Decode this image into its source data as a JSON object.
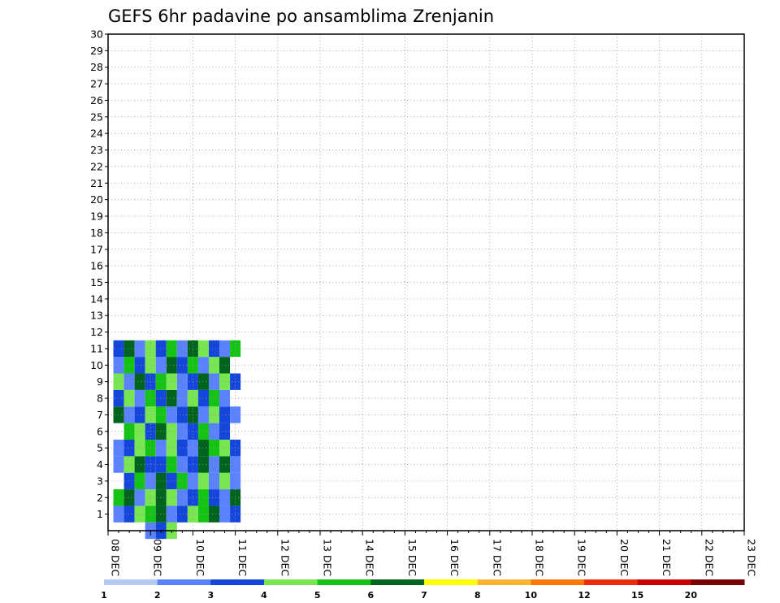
{
  "chart_data": {
    "type": "heatmap",
    "title": "GEFS 6hr padavine po ansamblima Zrenjanin",
    "xlabel": "",
    "ylabel": "",
    "x_tick_labels": [
      "08 DEC",
      "09 DEC",
      "10 DEC",
      "11 DEC",
      "12 DEC",
      "13 DEC",
      "14 DEC",
      "15 DEC",
      "16 DEC",
      "17 DEC",
      "18 DEC",
      "19 DEC",
      "20 DEC",
      "21 DEC",
      "22 DEC",
      "23 DEC"
    ],
    "y_tick_labels": [
      "1",
      "2",
      "3",
      "4",
      "5",
      "6",
      "7",
      "8",
      "9",
      "10",
      "11",
      "12",
      "13",
      "14",
      "15",
      "16",
      "17",
      "18",
      "19",
      "20",
      "21",
      "22",
      "23",
      "24",
      "25",
      "26",
      "27",
      "28",
      "29",
      "30"
    ],
    "x_range_days": [
      0,
      15
    ],
    "y_range": [
      0,
      30
    ],
    "grid": true,
    "legend_placement": "bottom",
    "legend": {
      "labels": [
        "1",
        "2",
        "3",
        "4",
        "5",
        "6",
        "7",
        "8",
        "10",
        "12",
        "15",
        "20"
      ],
      "colors": [
        "#b4c8f5",
        "#5a82ff",
        "#1446dc",
        "#78e650",
        "#14c314",
        "#00641e",
        "#ffff00",
        "#ffb432",
        "#ff7800",
        "#eb2d0a",
        "#c80000",
        "#780000"
      ]
    },
    "cells": [
      [
        1,
        0,
        1
      ],
      [
        1.25,
        0,
        2
      ],
      [
        1.5,
        0,
        3
      ],
      [
        0.25,
        1,
        1
      ],
      [
        0.5,
        1,
        2
      ],
      [
        0.75,
        1,
        3
      ],
      [
        1,
        1,
        4
      ],
      [
        1.25,
        1,
        5
      ],
      [
        1.5,
        1,
        1
      ],
      [
        1.75,
        1,
        2
      ],
      [
        2,
        1,
        3
      ],
      [
        2.25,
        1,
        4
      ],
      [
        2.5,
        1,
        5
      ],
      [
        2.75,
        1,
        1
      ],
      [
        3,
        1,
        2
      ],
      [
        0.25,
        2,
        4
      ],
      [
        0.5,
        2,
        5
      ],
      [
        0.75,
        2,
        1
      ],
      [
        1,
        2,
        3
      ],
      [
        1.25,
        2,
        5
      ],
      [
        1.5,
        2,
        3
      ],
      [
        1.75,
        2,
        1
      ],
      [
        2,
        2,
        2
      ],
      [
        2.25,
        2,
        4
      ],
      [
        2.5,
        2,
        2
      ],
      [
        2.75,
        2,
        1
      ],
      [
        3,
        2,
        5
      ],
      [
        0.5,
        3,
        2
      ],
      [
        0.75,
        3,
        4
      ],
      [
        1,
        3,
        1
      ],
      [
        1.25,
        3,
        5
      ],
      [
        1.5,
        3,
        2
      ],
      [
        1.75,
        3,
        4
      ],
      [
        2,
        3,
        1
      ],
      [
        2.25,
        3,
        3
      ],
      [
        2.5,
        3,
        1
      ],
      [
        2.75,
        3,
        3
      ],
      [
        3,
        3,
        1
      ],
      [
        0.25,
        4,
        1
      ],
      [
        0.5,
        4,
        3
      ],
      [
        0.75,
        4,
        5
      ],
      [
        1,
        4,
        2
      ],
      [
        1.25,
        4,
        2
      ],
      [
        1.5,
        4,
        4
      ],
      [
        1.75,
        4,
        1
      ],
      [
        2,
        4,
        2
      ],
      [
        2.25,
        4,
        5
      ],
      [
        2.5,
        4,
        1
      ],
      [
        2.75,
        4,
        5
      ],
      [
        3,
        4,
        1
      ],
      [
        0.25,
        5,
        1
      ],
      [
        0.5,
        5,
        2
      ],
      [
        0.75,
        5,
        3
      ],
      [
        1,
        5,
        4
      ],
      [
        1.25,
        5,
        1
      ],
      [
        1.5,
        5,
        3
      ],
      [
        1.75,
        5,
        2
      ],
      [
        2,
        5,
        1
      ],
      [
        2.25,
        5,
        5
      ],
      [
        2.5,
        5,
        4
      ],
      [
        2.75,
        5,
        3
      ],
      [
        3,
        5,
        2
      ],
      [
        0.5,
        6,
        4
      ],
      [
        0.75,
        6,
        3
      ],
      [
        1,
        6,
        2
      ],
      [
        1.25,
        6,
        5
      ],
      [
        1.5,
        6,
        3
      ],
      [
        1.75,
        6,
        1
      ],
      [
        2,
        6,
        2
      ],
      [
        2.25,
        6,
        4
      ],
      [
        2.5,
        6,
        1
      ],
      [
        2.75,
        6,
        2
      ],
      [
        0.25,
        7,
        5
      ],
      [
        0.5,
        7,
        1
      ],
      [
        0.75,
        7,
        2
      ],
      [
        1,
        7,
        3
      ],
      [
        1.25,
        7,
        4
      ],
      [
        1.5,
        7,
        1
      ],
      [
        1.75,
        7,
        2
      ],
      [
        2,
        7,
        5
      ],
      [
        2.25,
        7,
        1
      ],
      [
        2.5,
        7,
        3
      ],
      [
        2.75,
        7,
        2
      ],
      [
        3,
        7,
        1
      ],
      [
        0.25,
        8,
        2
      ],
      [
        0.5,
        8,
        3
      ],
      [
        0.75,
        8,
        1
      ],
      [
        1,
        8,
        4
      ],
      [
        1.25,
        8,
        2
      ],
      [
        1.5,
        8,
        5
      ],
      [
        1.75,
        8,
        1
      ],
      [
        2,
        8,
        3
      ],
      [
        2.25,
        8,
        2
      ],
      [
        2.5,
        8,
        4
      ],
      [
        2.75,
        8,
        1
      ],
      [
        0.25,
        9,
        3
      ],
      [
        0.5,
        9,
        1
      ],
      [
        0.75,
        9,
        5
      ],
      [
        1,
        9,
        2
      ],
      [
        1.25,
        9,
        4
      ],
      [
        1.5,
        9,
        3
      ],
      [
        1.75,
        9,
        1
      ],
      [
        2,
        9,
        2
      ],
      [
        2.25,
        9,
        5
      ],
      [
        2.5,
        9,
        1
      ],
      [
        2.75,
        9,
        3
      ],
      [
        3,
        9,
        2
      ],
      [
        0.25,
        10,
        1
      ],
      [
        0.5,
        10,
        4
      ],
      [
        0.75,
        10,
        2
      ],
      [
        1,
        10,
        3
      ],
      [
        1.25,
        10,
        1
      ],
      [
        1.5,
        10,
        5
      ],
      [
        1.75,
        10,
        2
      ],
      [
        2,
        10,
        4
      ],
      [
        2.25,
        10,
        1
      ],
      [
        2.5,
        10,
        3
      ],
      [
        2.75,
        10,
        5
      ],
      [
        0.25,
        11,
        2
      ],
      [
        0.5,
        11,
        5
      ],
      [
        0.75,
        11,
        1
      ],
      [
        1,
        11,
        3
      ],
      [
        1.25,
        11,
        2
      ],
      [
        1.5,
        11,
        4
      ],
      [
        1.75,
        11,
        1
      ],
      [
        2,
        11,
        5
      ],
      [
        2.25,
        11,
        3
      ],
      [
        2.5,
        11,
        2
      ],
      [
        2.75,
        11,
        1
      ],
      [
        3,
        11,
        4
      ]
    ]
  }
}
